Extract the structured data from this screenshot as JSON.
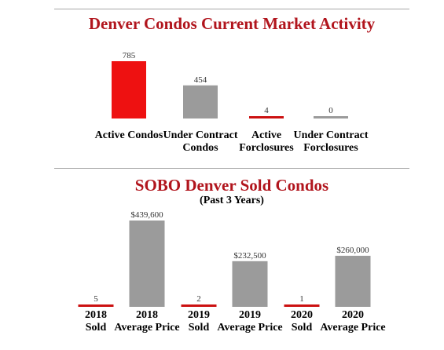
{
  "colors": {
    "title": "#b1151d",
    "red_bar": "#ee1111",
    "gray_bar": "#9b9b9b",
    "rule": "#a6a6a6"
  },
  "chart_data": [
    {
      "type": "bar",
      "title": "Denver Condos Current Market Activity",
      "categories": [
        [
          "Active Condos"
        ],
        [
          "Under Contract",
          "Condos"
        ],
        [
          "Active",
          "Forclosures"
        ],
        [
          "Under Contract",
          "Forclosures"
        ]
      ],
      "values": [
        785,
        454,
        4,
        0
      ],
      "value_labels": [
        "785",
        "454",
        "4",
        "0"
      ],
      "bar_colors": [
        "#ee1111",
        "#9b9b9b",
        "#cc1111",
        "#9b9b9b"
      ],
      "ylim": [
        0,
        785
      ],
      "grid": false,
      "legend": "none"
    },
    {
      "type": "bar",
      "title": "SOBO Denver Sold Condos",
      "subtitle": "(Past 3 Years)",
      "categories": [
        [
          "2018",
          "Sold"
        ],
        [
          "2018",
          "Average Price"
        ],
        [
          "2019",
          "Sold"
        ],
        [
          "2019",
          "Average Price"
        ],
        [
          "2020",
          "Sold"
        ],
        [
          "2020",
          "Average Price"
        ]
      ],
      "values": [
        5,
        439600,
        2,
        232500,
        1,
        260000
      ],
      "value_labels": [
        "5",
        "$439,600",
        "2",
        "$232,500",
        "1",
        "$260,000"
      ],
      "bar_colors": [
        "#cc1111",
        "#9b9b9b",
        "#cc1111",
        "#9b9b9b",
        "#cc1111",
        "#9b9b9b"
      ],
      "ylim": [
        0,
        439600
      ],
      "grid": false,
      "legend": "none"
    }
  ]
}
